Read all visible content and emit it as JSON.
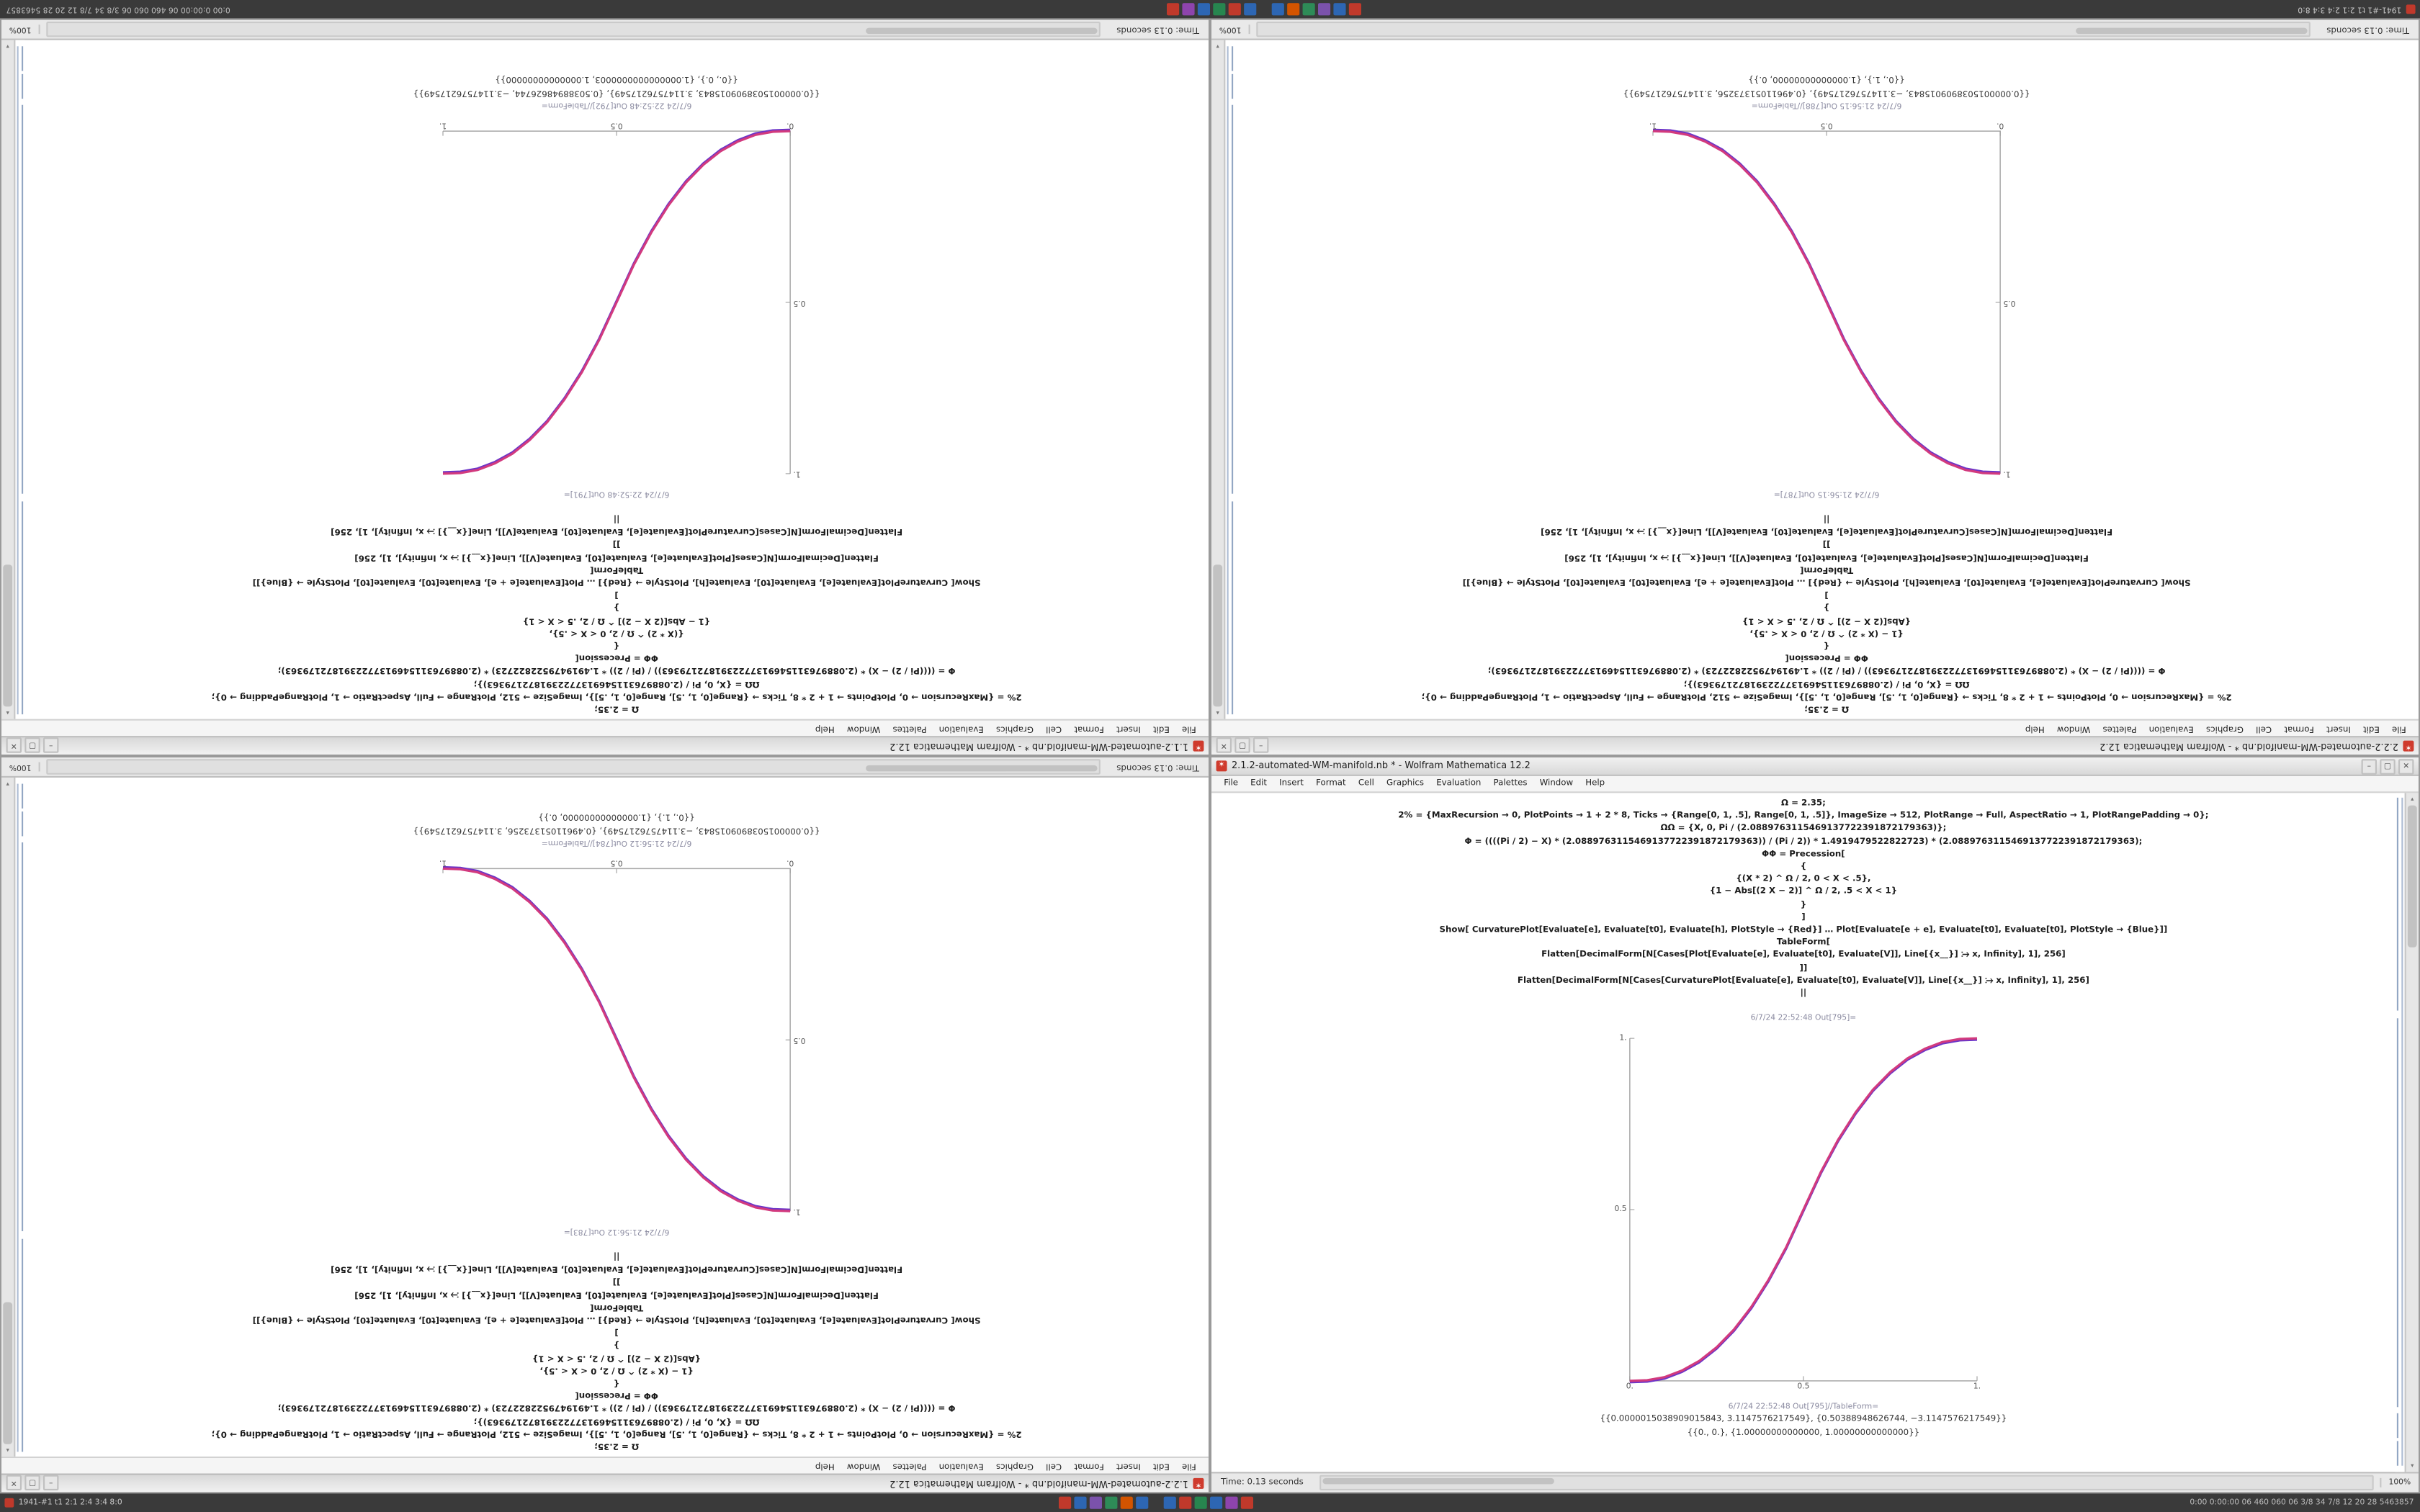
{
  "app": {
    "name": "Wolfram Mathematica",
    "version": "12.2"
  },
  "menu_items": [
    "File",
    "Edit",
    "Insert",
    "Format",
    "Cell",
    "Graphics",
    "Evaluation",
    "Palettes",
    "Window",
    "Help"
  ],
  "taskbar": {
    "menu_dot_color": "#c0392b",
    "left_text": "1941-#1  t1 2:1  2:4  3:4  8:0",
    "right_text": "0:00  0:00:00  06 460 060 06  3/8 34 7/8  12 20 28  5463857",
    "tray_icons_a": [
      {
        "name": "tray-app-icon",
        "color": "#c0392b"
      },
      {
        "name": "tray-app-icon",
        "color": "#2d66b3"
      },
      {
        "name": "tray-app-icon",
        "color": "#7b52ab"
      },
      {
        "name": "tray-app-icon",
        "color": "#2e8b57"
      },
      {
        "name": "tray-app-icon",
        "color": "#d35400"
      },
      {
        "name": "tray-app-icon",
        "color": "#2d66b3"
      }
    ],
    "tray_icons_b": [
      {
        "name": "tray-app-icon",
        "color": "#2d66b3"
      },
      {
        "name": "tray-app-icon",
        "color": "#c0392b"
      },
      {
        "name": "tray-app-icon",
        "color": "#27864f"
      },
      {
        "name": "tray-app-icon",
        "color": "#2d66b3"
      },
      {
        "name": "tray-app-icon",
        "color": "#8e44ad"
      },
      {
        "name": "tray-app-icon",
        "color": "#c0392b"
      }
    ]
  },
  "window_controls": {
    "minimize": "–",
    "maximize": "▢",
    "close": "✕",
    "app_glyph": "✶"
  },
  "notebooks": {
    "top_left": {
      "title": "1.1.2-automated-WM-manifold.nb * - Wolfram Mathematica 12.2",
      "rotated": true,
      "code_lines": [
        "Ω = 2.35;",
        "2% = {MaxRecursion → 0, PlotPoints → 1 + 2 * 8, Ticks → {Range[0, 1, .5], Range[0, 1, .5]}, ImageSize → 512, PlotRange → Full, AspectRatio → 1, PlotRangePadding → 0};",
        "ΩΩ = {X, 0, Pi / (2.0889763115469137722391872179363)};",
        "Φ = ((((Pi / 2) − X) * (2.0889763115469137722391872179363)) / (Pi / 2)) * 1.4919479522822723) * (2.0889763115469137722391872179363);",
        "ΦΦ = Precession[",
        "{",
        "{(X * 2) ^ Ω / 2, 0 < X < .5},",
        "{1 − Abs[(2 X − 2)] ^ Ω / 2, .5 < X < 1}",
        "}",
        "]",
        "Show[  CurvaturePlot[Evaluate[e], Evaluate[t0], Evaluate[h], PlotStyle → {Red}]  …  Plot[Evaluate[e + e], Evaluate[t0], Evaluate[t0],  PlotStyle → {Blue}]]",
        "TableForm[",
        "Flatten[DecimalForm[N[Cases[Plot[Evaluate[e], Evaluate[t0], Evaluate[V]], Line[{x__}] ⧴ x, Infinity], 1], 256]",
        "]]",
        "Flatten[DecimalForm[N[Cases[CurvaturePlot[Evaluate[e], Evaluate[t0], Evaluate[V]], Line[{x__}] ⧴ x, Infinity], 1], 256]",
        "||"
      ],
      "out_label": "6/7/24 22:52:48 Out[791]=",
      "tableform_label": "6/7/24 22:52:48 Out[792]//TableForm=",
      "output_lines": [
        "{{0.0000015038909015843, 3.1147576217549}, {0.50388948626744, −3.1147576217549}}",
        "{{0., 0.}, {1.0000000000000003, 1.00000000000000}}"
      ],
      "status": "Time: 0.13 seconds",
      "zoom": "100%",
      "plot": {
        "type": "line",
        "x_ticks": [
          "0.",
          "0.5",
          "1."
        ],
        "y_ticks": [
          "0.5",
          "1."
        ],
        "xlim": [
          0,
          1
        ],
        "ylim": [
          0,
          1
        ],
        "series": [
          {
            "name": "CurvaturePlot (Red)",
            "color": "#d23a7e"
          },
          {
            "name": "Plot (Blue)",
            "color": "#6c35c8"
          }
        ],
        "curve_points": [
          [
            0,
            0
          ],
          [
            0.05,
            0.002
          ],
          [
            0.1,
            0.011
          ],
          [
            0.15,
            0.03
          ],
          [
            0.2,
            0.058
          ],
          [
            0.25,
            0.098
          ],
          [
            0.3,
            0.15
          ],
          [
            0.35,
            0.216
          ],
          [
            0.4,
            0.296
          ],
          [
            0.45,
            0.39
          ],
          [
            0.5,
            0.5
          ],
          [
            0.55,
            0.61
          ],
          [
            0.6,
            0.704
          ],
          [
            0.65,
            0.784
          ],
          [
            0.7,
            0.85
          ],
          [
            0.75,
            0.902
          ],
          [
            0.8,
            0.942
          ],
          [
            0.85,
            0.97
          ],
          [
            0.9,
            0.989
          ],
          [
            0.95,
            0.998
          ],
          [
            1,
            1
          ]
        ]
      }
    },
    "top_right": {
      "title": "2.2.2-automated-WM-manifold.nb * - Wolfram Mathematica 12.2",
      "rotated": true,
      "code_lines": [
        "Ω = 2.35;",
        "2% = {MaxRecursion → 0, PlotPoints → 1 + 2 * 8, Ticks → {Range[0, 1, .5], Range[0, 1, .5]}, ImageSize → 512, PlotRange → Full, AspectRatio → 1, PlotRangePadding → 0};",
        "ΩΩ = {X, 0, Pi / (2.0889763115469137722391872179363)};",
        "Φ = ((((Pi / 2) − X) * (2.0889763115469137722391872179363)) / (Pi / 2)) * 1.4919479522822723) * (2.0889763115469137722391872179363);",
        "ΦΦ = Precession[",
        "{",
        "{1 − (X * 2) ^ Ω / 2, 0 < X < .5},",
        "{Abs[(2 X − 2)] ^ Ω / 2, .5 < X < 1}",
        "}",
        "]",
        "Show[  CurvaturePlot[Evaluate[e], Evaluate[t0], Evaluate[h], PlotStyle → {Red}]  …  Plot[Evaluate[e + e], Evaluate[t0], Evaluate[t0],  PlotStyle → {Blue}]]",
        "TableForm[",
        "Flatten[DecimalForm[N[Cases[Plot[Evaluate[e], Evaluate[t0], Evaluate[V]], Line[{x__}] ⧴ x, Infinity], 1], 256]",
        "]]",
        "Flatten[DecimalForm[N[Cases[CurvaturePlot[Evaluate[e], Evaluate[t0], Evaluate[V]], Line[{x__}] ⧴ x, Infinity], 1], 256]",
        "||"
      ],
      "out_label": "6/7/24 21:56:15 Out[787]=",
      "tableform_label": "6/7/24 21:56:15 Out[788]//TableForm=",
      "output_lines": [
        "{{0.0000015038909015843, −3.1147576217549}, {0.49611051373256, 3.1147576217549}}",
        "{{0., 1.}, {1.00000000000000, 0.}}"
      ],
      "status": "Time: 0.13 seconds",
      "zoom": "100%",
      "plot": {
        "type": "line",
        "x_ticks": [
          "0.",
          "0.5",
          "1."
        ],
        "y_ticks": [
          "0.5",
          "1."
        ],
        "xlim": [
          0,
          1
        ],
        "ylim": [
          0,
          1
        ],
        "series": [
          {
            "name": "CurvaturePlot (Red)",
            "color": "#d23a7e"
          },
          {
            "name": "Plot (Blue)",
            "color": "#6c35c8"
          }
        ],
        "curve_points": [
          [
            0,
            1
          ],
          [
            0.05,
            0.998
          ],
          [
            0.1,
            0.989
          ],
          [
            0.15,
            0.97
          ],
          [
            0.2,
            0.942
          ],
          [
            0.25,
            0.902
          ],
          [
            0.3,
            0.85
          ],
          [
            0.35,
            0.784
          ],
          [
            0.4,
            0.704
          ],
          [
            0.45,
            0.61
          ],
          [
            0.5,
            0.5
          ],
          [
            0.55,
            0.39
          ],
          [
            0.6,
            0.296
          ],
          [
            0.65,
            0.216
          ],
          [
            0.7,
            0.15
          ],
          [
            0.75,
            0.098
          ],
          [
            0.8,
            0.058
          ],
          [
            0.85,
            0.03
          ],
          [
            0.9,
            0.011
          ],
          [
            0.95,
            0.002
          ],
          [
            1,
            0
          ]
        ]
      }
    },
    "bottom_left": {
      "title": "1.2.2-automated-WM-manifold.nb * - Wolfram Mathematica 12.2",
      "rotated": true,
      "code_lines": [
        "Ω = 2.35;",
        "2% = {MaxRecursion → 0, PlotPoints → 1 + 2 * 8, Ticks → {Range[0, 1, .5], Range[0, 1, .5]}, ImageSize → 512, PlotRange → Full, AspectRatio → 1, PlotRangePadding → 0};",
        "ΩΩ = {X, 0, Pi / (2.0889763115469137722391872179363)};",
        "Φ = ((((Pi / 2) − X) * (2.0889763115469137722391872179363)) / (Pi / 2)) * 1.4919479522822723) * (2.0889763115469137722391872179363);",
        "ΦΦ = Precession[",
        "{",
        "{1 − (X * 2) ^ Ω / 2, 0 < X < .5},",
        "{Abs[(2 X − 2)] ^ Ω / 2, .5 < X < 1}",
        "}",
        "]",
        "Show[  CurvaturePlot[Evaluate[e], Evaluate[t0], Evaluate[h], PlotStyle → {Red}]  …  Plot[Evaluate[e + e], Evaluate[t0], Evaluate[t0],  PlotStyle → {Blue}]]",
        "TableForm[",
        "Flatten[DecimalForm[N[Cases[Plot[Evaluate[e], Evaluate[t0], Evaluate[V]], Line[{x__}] ⧴ x, Infinity], 1], 256]",
        "]]",
        "Flatten[DecimalForm[N[Cases[CurvaturePlot[Evaluate[e], Evaluate[t0], Evaluate[V]], Line[{x__}] ⧴ x, Infinity], 1], 256]",
        "||"
      ],
      "out_label": "6/7/24 21:56:12 Out[783]=",
      "tableform_label": "6/7/24 21:56:12 Out[784]//TableForm=",
      "output_lines": [
        "{{0.0000015038909015843, −3.1147576217549}, {0.49611051373256, 3.1147576217549}}",
        "{{0., 1.}, {1.00000000000000, 0.}}"
      ],
      "status": "Time: 0.13 seconds",
      "zoom": "100%",
      "plot": {
        "type": "line",
        "x_ticks": [
          "0.",
          "0.5",
          "1."
        ],
        "y_ticks": [
          "0.5",
          "1."
        ],
        "xlim": [
          0,
          1
        ],
        "ylim": [
          0,
          1
        ],
        "series": [
          {
            "name": "CurvaturePlot (Red)",
            "color": "#d23a7e"
          },
          {
            "name": "Plot (Blue)",
            "color": "#6c35c8"
          }
        ],
        "curve_points": [
          [
            0,
            1
          ],
          [
            0.05,
            0.998
          ],
          [
            0.1,
            0.989
          ],
          [
            0.15,
            0.97
          ],
          [
            0.2,
            0.942
          ],
          [
            0.25,
            0.902
          ],
          [
            0.3,
            0.85
          ],
          [
            0.35,
            0.784
          ],
          [
            0.4,
            0.704
          ],
          [
            0.45,
            0.61
          ],
          [
            0.5,
            0.5
          ],
          [
            0.55,
            0.39
          ],
          [
            0.6,
            0.296
          ],
          [
            0.65,
            0.216
          ],
          [
            0.7,
            0.15
          ],
          [
            0.75,
            0.098
          ],
          [
            0.8,
            0.058
          ],
          [
            0.85,
            0.03
          ],
          [
            0.9,
            0.011
          ],
          [
            0.95,
            0.002
          ],
          [
            1,
            0
          ]
        ]
      }
    },
    "bottom_right": {
      "title": "2.1.2-automated-WM-manifold.nb * - Wolfram Mathematica 12.2",
      "rotated": false,
      "code_lines": [
        "Ω = 2.35;",
        "2% = {MaxRecursion → 0, PlotPoints → 1 + 2 * 8, Ticks → {Range[0, 1, .5], Range[0, 1, .5]}, ImageSize → 512, PlotRange → Full, AspectRatio → 1, PlotRangePadding → 0};",
        "ΩΩ = {X, 0, Pi / (2.0889763115469137722391872179363)};",
        "Φ = ((((Pi / 2) − X) * (2.0889763115469137722391872179363)) / (Pi / 2)) * 1.4919479522822723) * (2.0889763115469137722391872179363);",
        "ΦΦ = Precession[",
        "{",
        "{(X * 2) ^ Ω / 2, 0 < X < .5},",
        "{1 − Abs[(2 X − 2)] ^ Ω / 2, .5 < X < 1}",
        "}",
        "]",
        "Show[  CurvaturePlot[Evaluate[e], Evaluate[t0], Evaluate[h], PlotStyle → {Red}]  …  Plot[Evaluate[e + e], Evaluate[t0], Evaluate[t0],  PlotStyle → {Blue}]]",
        "TableForm[",
        "Flatten[DecimalForm[N[Cases[Plot[Evaluate[e], Evaluate[t0], Evaluate[V]], Line[{x__}] ⧴ x, Infinity], 1], 256]",
        "]]",
        "Flatten[DecimalForm[N[Cases[CurvaturePlot[Evaluate[e], Evaluate[t0], Evaluate[V]], Line[{x__}] ⧴ x, Infinity], 1], 256]",
        "||"
      ],
      "out_label": "6/7/24 22:52:48 Out[795]=",
      "tableform_label": "6/7/24 22:52:48 Out[795]//TableForm=",
      "output_lines": [
        "{{0.0000015038909015843, 3.1147576217549}, {0.50388948626744, −3.1147576217549}}",
        "{{0., 0.}, {1.00000000000000, 1.00000000000000}}"
      ],
      "status": "Time: 0.13 seconds",
      "zoom": "100%",
      "plot": {
        "type": "line",
        "x_ticks": [
          "0.",
          "0.5",
          "1."
        ],
        "y_ticks": [
          "0.5",
          "1."
        ],
        "xlim": [
          0,
          1
        ],
        "ylim": [
          0,
          1
        ],
        "series": [
          {
            "name": "CurvaturePlot (Red)",
            "color": "#d23a7e"
          },
          {
            "name": "Plot (Blue)",
            "color": "#6c35c8"
          }
        ],
        "curve_points": [
          [
            0,
            0
          ],
          [
            0.05,
            0.002
          ],
          [
            0.1,
            0.011
          ],
          [
            0.15,
            0.03
          ],
          [
            0.2,
            0.058
          ],
          [
            0.25,
            0.098
          ],
          [
            0.3,
            0.15
          ],
          [
            0.35,
            0.216
          ],
          [
            0.4,
            0.296
          ],
          [
            0.45,
            0.39
          ],
          [
            0.5,
            0.5
          ],
          [
            0.55,
            0.61
          ],
          [
            0.6,
            0.704
          ],
          [
            0.65,
            0.784
          ],
          [
            0.7,
            0.85
          ],
          [
            0.75,
            0.902
          ],
          [
            0.8,
            0.942
          ],
          [
            0.85,
            0.97
          ],
          [
            0.9,
            0.989
          ],
          [
            0.95,
            0.998
          ],
          [
            1,
            1
          ]
        ]
      }
    }
  }
}
